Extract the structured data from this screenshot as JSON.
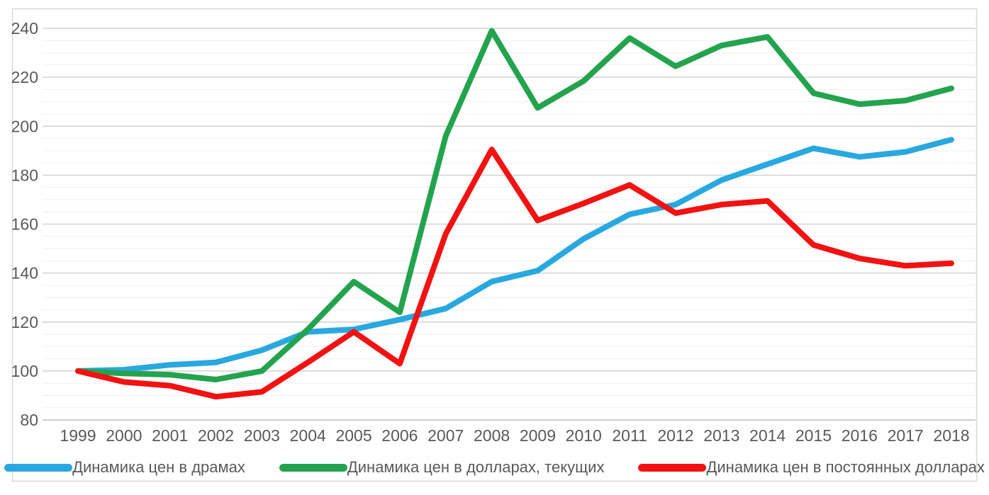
{
  "figure": {
    "background": "#ffffff",
    "frame_border_color": "#d8d8d8",
    "text_color": "#595959",
    "grid_minor_color": "#efefef",
    "grid_major_color": "#d2d2d2",
    "grid_baseline_color": "#bfbfbf"
  },
  "chart_data": {
    "type": "line",
    "title": "",
    "xlabel": "",
    "ylabel": "",
    "grid": true,
    "legend_position": "bottom",
    "x_labels": [
      "1999",
      "2000",
      "2001",
      "2002",
      "2003",
      "2004",
      "2005",
      "2006",
      "2007",
      "2008",
      "2009",
      "2010",
      "2011",
      "2012",
      "2013",
      "2014",
      "2015",
      "2016",
      "2017",
      "2018"
    ],
    "y_axis": {
      "min": 80,
      "max": 240,
      "major_step": 20,
      "minor_step": 5,
      "tick_labels": [
        "240",
        "220",
        "200",
        "180",
        "160",
        "140",
        "120",
        "100",
        "80"
      ]
    },
    "series": [
      {
        "name": "Динамика цен в драмах",
        "color": "#29a8e0",
        "values": [
          100,
          100.5,
          102.5,
          103.5,
          108.5,
          116,
          117,
          121,
          125.5,
          136.5,
          141,
          154,
          164,
          168,
          178,
          184.5,
          191,
          187.5,
          189.5,
          194.5
        ]
      },
      {
        "name": "Динамика цен в долларах, текущих",
        "color": "#24a34e",
        "values": [
          100,
          99,
          98.5,
          96.5,
          100,
          117,
          136.5,
          124,
          196,
          239,
          207.5,
          218.5,
          236,
          224.5,
          233,
          236.5,
          213.5,
          209,
          210.5,
          215.5
        ]
      },
      {
        "name": "Динамика цен в постоянных долларах",
        "color": "#f11212",
        "values": [
          100,
          95.5,
          94,
          89.5,
          91.5,
          103.5,
          116,
          103,
          156,
          190.5,
          161.5,
          168.5,
          176,
          164.5,
          168,
          169.5,
          151.5,
          146,
          143,
          144
        ]
      }
    ]
  }
}
